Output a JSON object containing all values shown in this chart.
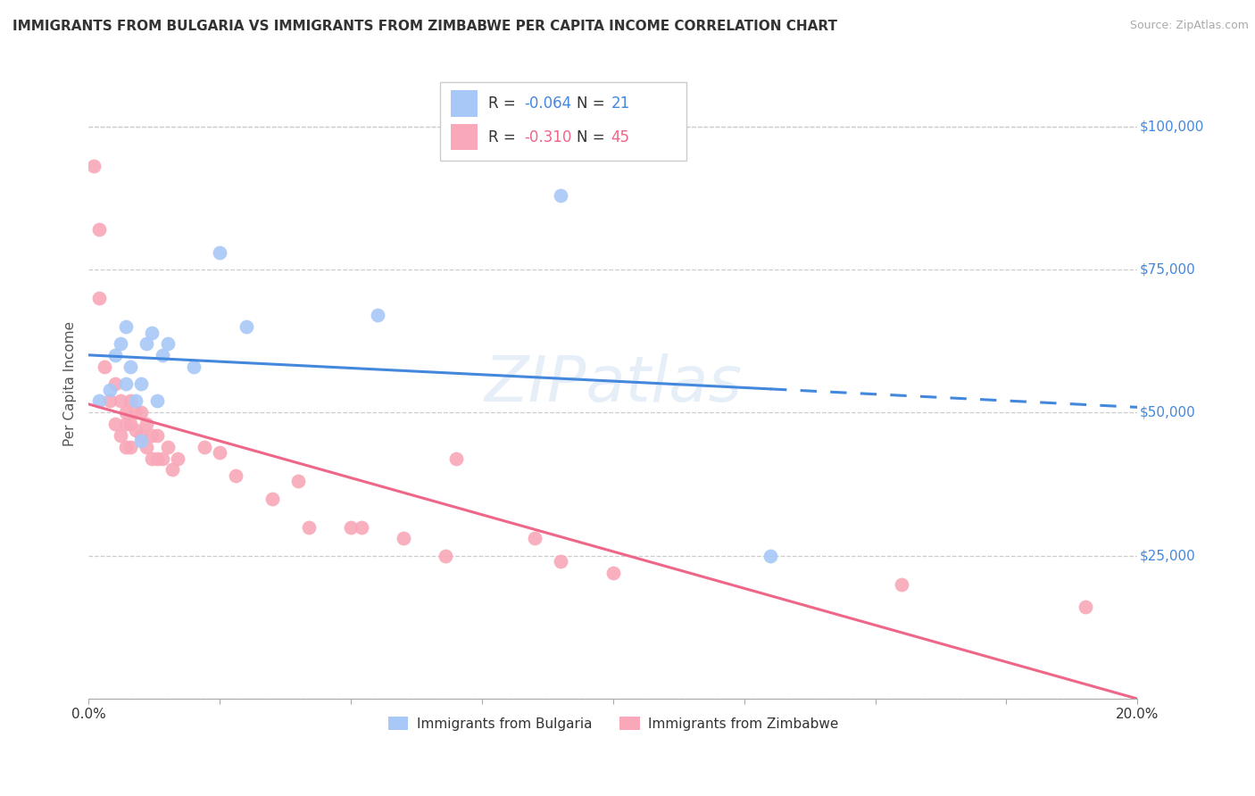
{
  "title": "IMMIGRANTS FROM BULGARIA VS IMMIGRANTS FROM ZIMBABWE PER CAPITA INCOME CORRELATION CHART",
  "source": "Source: ZipAtlas.com",
  "ylabel": "Per Capita Income",
  "xlim": [
    0.0,
    0.2
  ],
  "ylim": [
    0,
    110000
  ],
  "yticks": [
    0,
    25000,
    50000,
    75000,
    100000
  ],
  "ytick_labels_right": [
    "",
    "$25,000",
    "$50,000",
    "$75,000",
    "$100,000"
  ],
  "xticks": [
    0.0,
    0.025,
    0.05,
    0.075,
    0.1,
    0.125,
    0.15,
    0.175,
    0.2
  ],
  "xtick_labels": [
    "0.0%",
    "",
    "",
    "",
    "",
    "",
    "",
    "",
    "20.0%"
  ],
  "bg_color": "#ffffff",
  "grid_color": "#cccccc",
  "bulgaria_color": "#a8c8f8",
  "zimbabwe_color": "#f8a8b8",
  "bulgaria_line_color": "#4488dd",
  "zimbabwe_line_color": "#ee6688",
  "legend_bulgaria_R": "-0.064",
  "legend_bulgaria_N": "21",
  "legend_zimbabwe_R": "-0.310",
  "legend_zimbabwe_N": "45",
  "bulgaria_x": [
    0.002,
    0.004,
    0.005,
    0.006,
    0.007,
    0.007,
    0.008,
    0.009,
    0.01,
    0.01,
    0.011,
    0.012,
    0.013,
    0.014,
    0.015,
    0.02,
    0.025,
    0.03,
    0.055,
    0.09,
    0.13
  ],
  "bulgaria_y": [
    52000,
    54000,
    60000,
    62000,
    65000,
    55000,
    58000,
    52000,
    55000,
    45000,
    62000,
    64000,
    52000,
    60000,
    62000,
    58000,
    78000,
    65000,
    67000,
    88000,
    25000
  ],
  "zimbabwe_x": [
    0.001,
    0.002,
    0.002,
    0.003,
    0.004,
    0.005,
    0.005,
    0.006,
    0.006,
    0.007,
    0.007,
    0.007,
    0.008,
    0.008,
    0.008,
    0.009,
    0.009,
    0.01,
    0.01,
    0.011,
    0.011,
    0.012,
    0.012,
    0.013,
    0.013,
    0.014,
    0.015,
    0.016,
    0.017,
    0.022,
    0.025,
    0.028,
    0.035,
    0.04,
    0.042,
    0.05,
    0.052,
    0.06,
    0.068,
    0.07,
    0.085,
    0.09,
    0.1,
    0.155,
    0.19
  ],
  "zimbabwe_y": [
    93000,
    82000,
    70000,
    58000,
    52000,
    55000,
    48000,
    52000,
    46000,
    50000,
    48000,
    44000,
    52000,
    48000,
    44000,
    50000,
    47000,
    50000,
    46000,
    48000,
    44000,
    46000,
    42000,
    46000,
    42000,
    42000,
    44000,
    40000,
    42000,
    44000,
    43000,
    39000,
    35000,
    38000,
    30000,
    30000,
    30000,
    28000,
    25000,
    42000,
    28000,
    24000,
    22000,
    20000,
    16000
  ]
}
